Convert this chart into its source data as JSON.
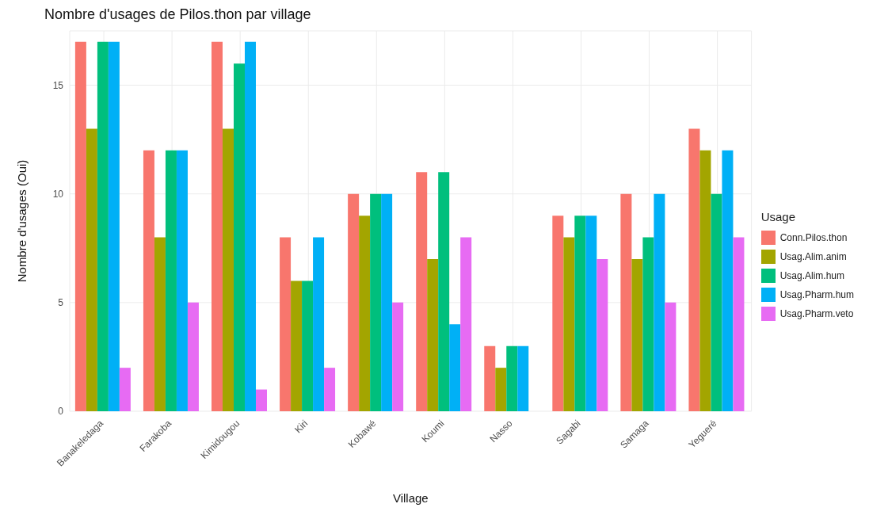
{
  "chart_data": {
    "type": "bar",
    "title": "Nombre d'usages de Pilos.thon par village",
    "xlabel": "Village",
    "ylabel": "Nombre d'usages (Oui)",
    "legend_title": "Usage",
    "categories": [
      "Banakeledaga",
      "Farakoba",
      "Kimidougou",
      "Kiri",
      "Kobawé",
      "Koumi",
      "Nasso",
      "Sagabi",
      "Samaga",
      "Yegueré"
    ],
    "series": [
      {
        "name": "Conn.Pilos.thon",
        "color": "#f8766d",
        "values": [
          17,
          12,
          17,
          8,
          10,
          11,
          3,
          9,
          10,
          13
        ]
      },
      {
        "name": "Usag.Alim.anim",
        "color": "#a3a500",
        "values": [
          13,
          8,
          13,
          6,
          9,
          7,
          2,
          8,
          7,
          12
        ]
      },
      {
        "name": "Usag.Alim.hum",
        "color": "#00bf7d",
        "values": [
          17,
          12,
          16,
          6,
          10,
          11,
          3,
          9,
          8,
          10
        ]
      },
      {
        "name": "Usag.Pharm.hum",
        "color": "#00b0f6",
        "values": [
          17,
          12,
          17,
          8,
          10,
          4,
          3,
          9,
          10,
          12
        ]
      },
      {
        "name": "Usag.Pharm.veto",
        "color": "#e76bf3",
        "values": [
          2,
          5,
          1,
          2,
          5,
          8,
          0,
          7,
          5,
          8
        ]
      }
    ],
    "ylim": [
      0,
      17.5
    ],
    "yticks": [
      0,
      5,
      10,
      15
    ],
    "grid": true,
    "legend": "right"
  }
}
